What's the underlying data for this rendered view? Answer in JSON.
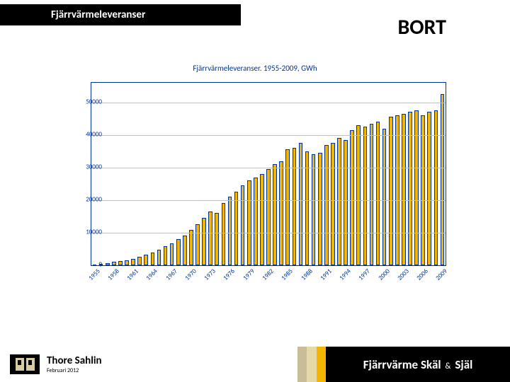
{
  "header": {
    "title": "Fjärrvärmeleveranser",
    "title_fontsize": 15,
    "right_word": "BORT",
    "right_fontsize": 30
  },
  "chart": {
    "type": "bar",
    "title": "Fjärrvärmeleveranser.  1955-2009, GWh",
    "title_fontsize": 11,
    "title_color": "#003399",
    "axis_color": "#003399",
    "grid_color": "#c0c0c0",
    "background_color": "#ffffff",
    "bar_fill": "#f2b500",
    "bar_border": "#003399",
    "ylim": [
      0,
      56000
    ],
    "yticks": [
      0,
      10000,
      20000,
      30000,
      40000,
      50000
    ],
    "ytick_fontsize": 9,
    "xtick_fontsize": 9,
    "xtick_rotation": -45,
    "xlabel_step": 3,
    "years": [
      1955,
      1956,
      1957,
      1958,
      1959,
      1960,
      1961,
      1962,
      1963,
      1964,
      1965,
      1966,
      1967,
      1968,
      1969,
      1970,
      1971,
      1972,
      1973,
      1974,
      1975,
      1976,
      1977,
      1978,
      1979,
      1980,
      1981,
      1982,
      1983,
      1984,
      1985,
      1986,
      1987,
      1988,
      1989,
      1990,
      1991,
      1992,
      1993,
      1994,
      1995,
      1996,
      1997,
      1998,
      1999,
      2000,
      2001,
      2002,
      2003,
      2004,
      2005,
      2006,
      2007,
      2008,
      2009
    ],
    "values": [
      300,
      500,
      700,
      1000,
      1200,
      1600,
      2000,
      2500,
      3200,
      4000,
      4800,
      5800,
      6800,
      8000,
      9200,
      10800,
      12500,
      14500,
      16500,
      16000,
      19000,
      21000,
      22500,
      24500,
      26000,
      27000,
      28000,
      29500,
      31000,
      32000,
      35500,
      36000,
      37500,
      35000,
      34000,
      34500,
      37000,
      37500,
      39000,
      38500,
      41500,
      43000,
      42500,
      43500,
      44000,
      42000,
      45500,
      46000,
      46500,
      47000,
      47500,
      46000,
      47000,
      47500,
      52500
    ]
  },
  "footer": {
    "author": "Thore Sahlin",
    "author_fontsize": 15,
    "date": "Februari  2012",
    "date_fontsize": 8,
    "brand_line": "Fjärrvärme Skäl & Själ",
    "brand_prefix": "Fjärrvärme Skäl",
    "brand_amp": "&",
    "brand_suffix": "Själ",
    "brand_fontsize": 17,
    "stripe_colors": [
      "#c9bd98",
      "#e5d9a8",
      "#f2b500"
    ]
  },
  "colors": {
    "black": "#000000",
    "white": "#ffffff"
  }
}
